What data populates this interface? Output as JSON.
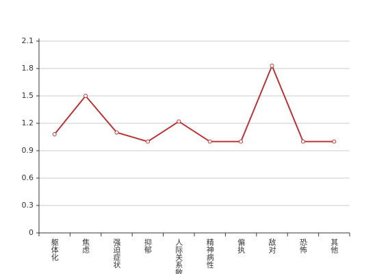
{
  "chart_data": {
    "type": "line",
    "categories": [
      "躯体化",
      "焦虑",
      "强迫症状",
      "抑郁",
      "人际关系敏感",
      "精神病性",
      "偏执",
      "敌对",
      "恐怖",
      "其他"
    ],
    "series": [
      {
        "name": null,
        "color": "#b83333",
        "values": [
          1.08,
          1.5,
          1.1,
          1.0,
          1.22,
          1.0,
          1.0,
          1.83,
          1.0,
          1.0
        ]
      }
    ],
    "ylim": [
      0,
      2.1
    ],
    "yticks": [
      0,
      0.3,
      0.6,
      0.9,
      1.2,
      1.5,
      1.8,
      2.1
    ],
    "grid": true
  }
}
